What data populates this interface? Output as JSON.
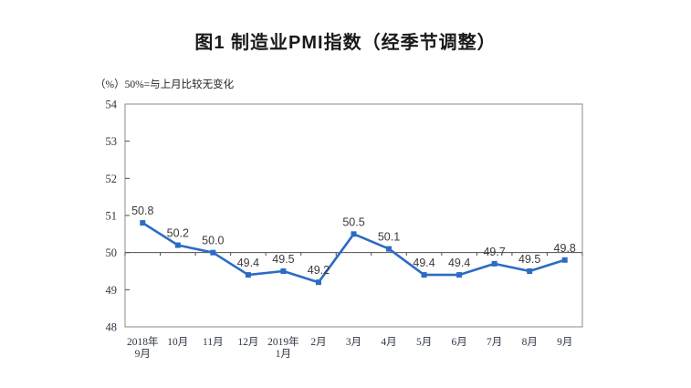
{
  "title": "图1 制造业PMI指数（经季节调整）",
  "axis_note": "（%）50%=与上月比较无变化",
  "colors": {
    "line": "#2B6CC4",
    "marker": "#2B6CC4",
    "plot_border": "#8a8a8a",
    "reference_line": "#4d4d4d",
    "tick": "#4d4d4d",
    "title_text": "#1a1a1a",
    "data_label": "#3a3a3a",
    "axis_label": "#2f3647",
    "background": "#ffffff"
  },
  "chart_data": {
    "type": "line",
    "title": "图1 制造业PMI指数（经季节调整）",
    "ylabel": "（%）50%=与上月比较无变化",
    "xlabel": "",
    "categories": [
      [
        "2018年",
        "9月"
      ],
      [
        "10月"
      ],
      [
        "11月"
      ],
      [
        "12月"
      ],
      [
        "2019年",
        "1月"
      ],
      [
        "2月"
      ],
      [
        "3月"
      ],
      [
        "4月"
      ],
      [
        "5月"
      ],
      [
        "6月"
      ],
      [
        "7月"
      ],
      [
        "8月"
      ],
      [
        "9月"
      ]
    ],
    "values": [
      50.8,
      50.2,
      50.0,
      49.4,
      49.5,
      49.2,
      50.5,
      50.1,
      49.4,
      49.4,
      49.7,
      49.5,
      49.8
    ],
    "labels": [
      "50.8",
      "50.2",
      "50.0",
      "49.4",
      "49.5",
      "49.2",
      "50.5",
      "50.1",
      "49.4",
      "49.4",
      "49.7",
      "49.5",
      "49.8"
    ],
    "ylim": [
      48,
      54
    ],
    "yticks": [
      48,
      49,
      50,
      51,
      52,
      53,
      54
    ],
    "reference_y": 50,
    "grid": false,
    "legend": "none",
    "marker": "square"
  }
}
